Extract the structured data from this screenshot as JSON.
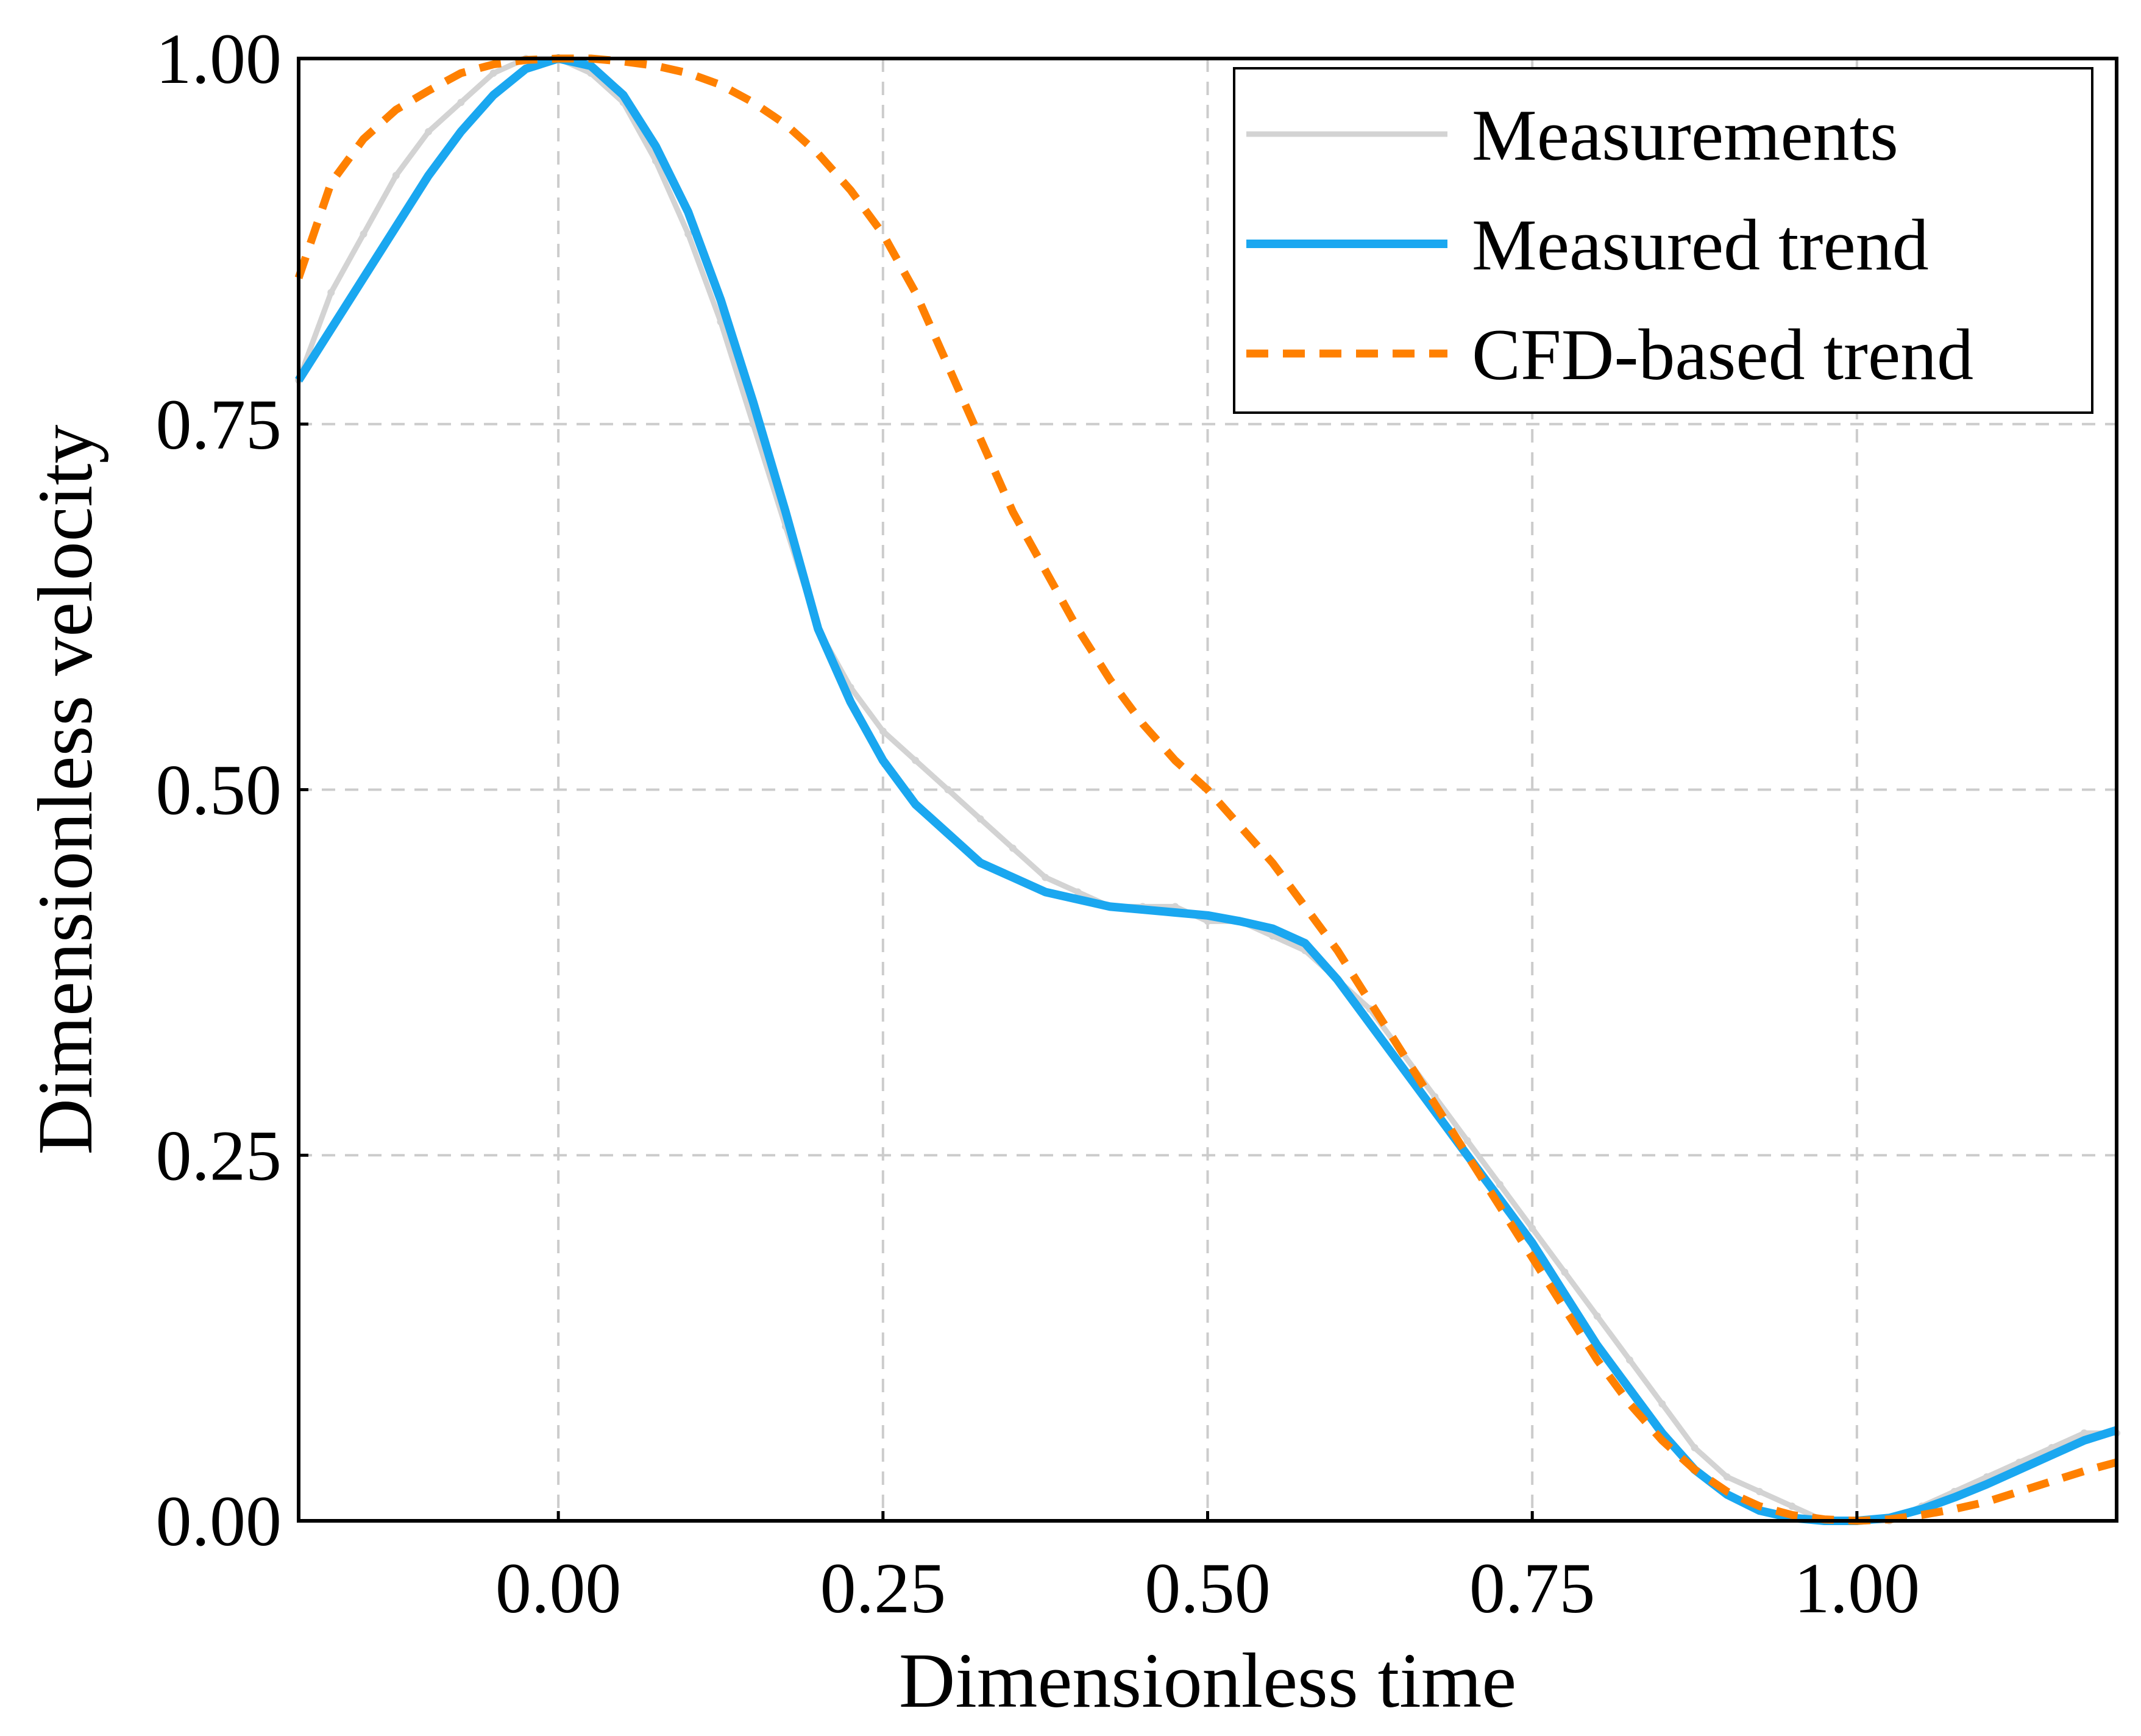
{
  "chart_data": {
    "type": "line",
    "xlabel": "Dimensionless time",
    "ylabel": "Dimensionless velocity",
    "xlim": [
      -0.2,
      1.2
    ],
    "ylim": [
      0.0,
      1.0
    ],
    "x_ticks": [
      0.0,
      0.25,
      0.5,
      0.75,
      1.0
    ],
    "x_tick_labels": [
      "0.00",
      "0.25",
      "0.50",
      "0.75",
      "1.00"
    ],
    "y_ticks": [
      0.0,
      0.25,
      0.5,
      0.75,
      1.0
    ],
    "y_tick_labels": [
      "0.00",
      "0.25",
      "0.50",
      "0.75",
      "1.00"
    ],
    "grid": true,
    "grid_style": "dashed",
    "legend_position": "top-right",
    "series": [
      {
        "name": "Measurements",
        "color": "#d3d3d3",
        "style": "solid",
        "x": [
          -0.2,
          -0.175,
          -0.15,
          -0.125,
          -0.1,
          -0.075,
          -0.05,
          -0.025,
          0.0,
          0.025,
          0.05,
          0.075,
          0.1,
          0.125,
          0.15,
          0.175,
          0.2,
          0.225,
          0.25,
          0.275,
          0.3,
          0.325,
          0.35,
          0.375,
          0.4,
          0.425,
          0.45,
          0.475,
          0.5,
          0.525,
          0.55,
          0.575,
          0.6,
          0.625,
          0.65,
          0.675,
          0.7,
          0.725,
          0.75,
          0.775,
          0.8,
          0.825,
          0.85,
          0.875,
          0.9,
          0.925,
          0.95,
          0.975,
          1.0,
          1.025,
          1.05,
          1.075,
          1.1,
          1.125,
          1.15,
          1.175,
          1.2
        ],
        "values": [
          0.78,
          0.84,
          0.88,
          0.92,
          0.95,
          0.97,
          0.99,
          1.0,
          1.0,
          0.99,
          0.97,
          0.93,
          0.88,
          0.82,
          0.75,
          0.68,
          0.61,
          0.57,
          0.54,
          0.52,
          0.5,
          0.48,
          0.46,
          0.44,
          0.43,
          0.42,
          0.42,
          0.42,
          0.41,
          0.41,
          0.4,
          0.39,
          0.37,
          0.35,
          0.32,
          0.29,
          0.26,
          0.23,
          0.2,
          0.17,
          0.14,
          0.11,
          0.08,
          0.05,
          0.03,
          0.02,
          0.01,
          0.0,
          0.0,
          0.0,
          0.01,
          0.02,
          0.03,
          0.04,
          0.05,
          0.06,
          0.06
        ]
      },
      {
        "name": "Measured trend",
        "color": "#1aa7f0",
        "style": "solid",
        "x": [
          -0.2,
          -0.175,
          -0.15,
          -0.125,
          -0.1,
          -0.075,
          -0.05,
          -0.025,
          0.0,
          0.025,
          0.05,
          0.075,
          0.1,
          0.125,
          0.15,
          0.175,
          0.2,
          0.225,
          0.25,
          0.275,
          0.3,
          0.325,
          0.35,
          0.375,
          0.4,
          0.425,
          0.45,
          0.475,
          0.5,
          0.525,
          0.55,
          0.575,
          0.6,
          0.625,
          0.65,
          0.675,
          0.7,
          0.725,
          0.75,
          0.775,
          0.8,
          0.825,
          0.85,
          0.875,
          0.9,
          0.925,
          0.95,
          0.975,
          1.0,
          1.025,
          1.05,
          1.075,
          1.1,
          1.125,
          1.15,
          1.175,
          1.2
        ],
        "values": [
          0.78,
          0.815,
          0.85,
          0.885,
          0.92,
          0.95,
          0.975,
          0.993,
          1.0,
          0.995,
          0.975,
          0.94,
          0.895,
          0.835,
          0.765,
          0.69,
          0.61,
          0.56,
          0.52,
          0.49,
          0.47,
          0.45,
          0.44,
          0.43,
          0.425,
          0.42,
          0.418,
          0.416,
          0.414,
          0.41,
          0.405,
          0.395,
          0.37,
          0.34,
          0.31,
          0.28,
          0.25,
          0.22,
          0.19,
          0.155,
          0.12,
          0.09,
          0.06,
          0.035,
          0.018,
          0.007,
          0.002,
          0.0,
          0.0,
          0.002,
          0.008,
          0.016,
          0.025,
          0.035,
          0.045,
          0.055,
          0.062
        ]
      },
      {
        "name": "CFD-based trend",
        "color": "#ff8000",
        "style": "dashed",
        "x": [
          -0.2,
          -0.175,
          -0.15,
          -0.125,
          -0.1,
          -0.075,
          -0.05,
          -0.025,
          0.0,
          0.025,
          0.05,
          0.075,
          0.1,
          0.125,
          0.15,
          0.175,
          0.2,
          0.225,
          0.25,
          0.275,
          0.3,
          0.325,
          0.35,
          0.375,
          0.4,
          0.425,
          0.45,
          0.475,
          0.5,
          0.525,
          0.55,
          0.575,
          0.6,
          0.625,
          0.65,
          0.675,
          0.7,
          0.725,
          0.75,
          0.775,
          0.8,
          0.825,
          0.85,
          0.875,
          0.9,
          0.925,
          0.95,
          0.975,
          1.0,
          1.025,
          1.05,
          1.075,
          1.1,
          1.125,
          1.15,
          1.175,
          1.2
        ],
        "values": [
          0.85,
          0.915,
          0.945,
          0.965,
          0.978,
          0.99,
          0.996,
          0.999,
          1.0,
          1.0,
          0.998,
          0.995,
          0.99,
          0.982,
          0.97,
          0.955,
          0.935,
          0.91,
          0.88,
          0.84,
          0.79,
          0.74,
          0.69,
          0.65,
          0.61,
          0.575,
          0.545,
          0.52,
          0.5,
          0.475,
          0.45,
          0.42,
          0.39,
          0.355,
          0.32,
          0.285,
          0.25,
          0.215,
          0.18,
          0.145,
          0.11,
          0.08,
          0.055,
          0.035,
          0.02,
          0.01,
          0.004,
          0.001,
          0.0,
          0.001,
          0.004,
          0.008,
          0.013,
          0.02,
          0.027,
          0.034,
          0.04
        ]
      }
    ]
  },
  "legend": {
    "items": [
      {
        "label": "Measurements",
        "color": "#d3d3d3",
        "style": "solid"
      },
      {
        "label": "Measured trend",
        "color": "#1aa7f0",
        "style": "solid"
      },
      {
        "label": "CFD-based trend",
        "color": "#ff8000",
        "style": "dashed"
      }
    ]
  }
}
